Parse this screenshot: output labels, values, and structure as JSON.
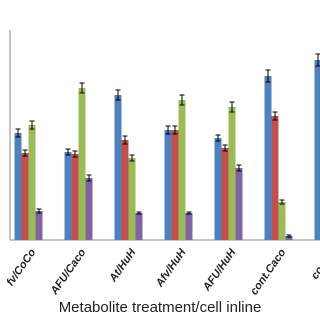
{
  "chart_data": {
    "type": "bar",
    "x_label": "Metabolite treatment/cell inline",
    "categories": [
      "fv/CoCo",
      "AFU/Caco",
      "At/HuH",
      "Afv/HuH",
      "AFU/HuH",
      "cont.Caco",
      "cont.H"
    ],
    "ylim": [
      0,
      100
    ],
    "series": [
      {
        "color": "#4f81bd",
        "values": [
          53.5,
          44,
          72.5,
          55,
          51,
          82,
          90
        ],
        "errors": [
          2,
          1.5,
          2.5,
          2,
          1.5,
          3,
          3
        ]
      },
      {
        "color": "#c0504d",
        "values": [
          43.5,
          43,
          50,
          55,
          46,
          62,
          null
        ],
        "errors": [
          1.5,
          1.5,
          2,
          2,
          1.5,
          2,
          null
        ]
      },
      {
        "color": "#9bbb59",
        "values": [
          57.5,
          76,
          41,
          70,
          66.5,
          19,
          null
        ],
        "errors": [
          2,
          2.5,
          1.5,
          2.5,
          2.5,
          1,
          null
        ]
      },
      {
        "color": "#8064a2",
        "values": [
          14.5,
          31,
          13.5,
          13.5,
          36,
          2,
          null
        ],
        "errors": [
          1,
          1.5,
          0.5,
          0.5,
          1.5,
          0.5,
          null
        ]
      }
    ]
  }
}
